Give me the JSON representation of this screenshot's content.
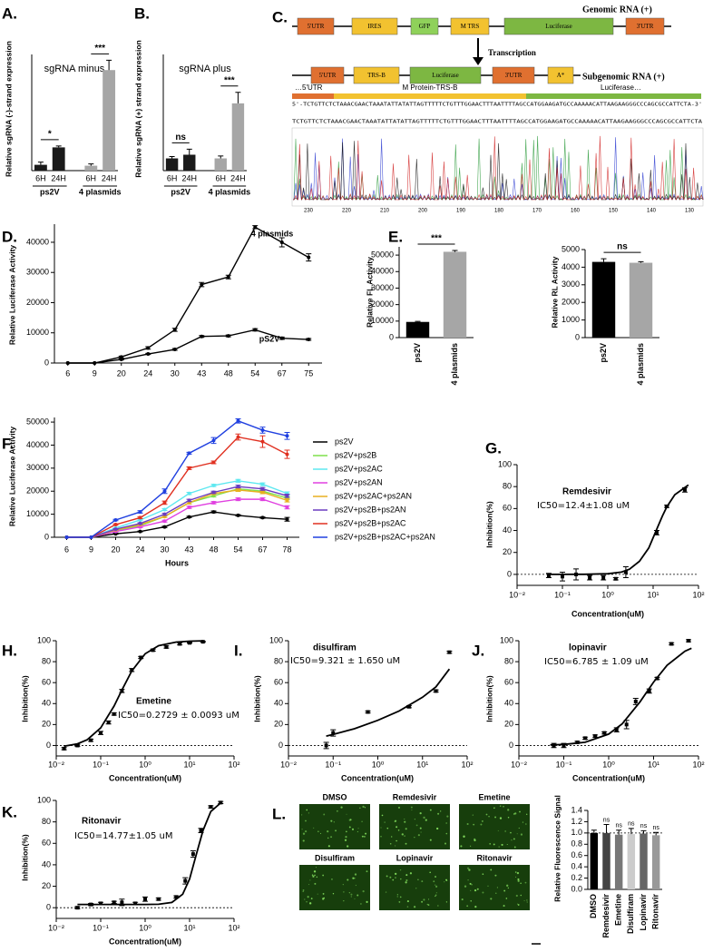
{
  "diagram": {
    "panel": "C.",
    "genomic": {
      "label": "Genomic RNA (+)",
      "boxes": [
        "5'UTR",
        "IRES",
        "GFP",
        "M TRS",
        "Luciferase",
        "3'UTR"
      ]
    },
    "transcription": "Transcription",
    "subgenomic": {
      "label": "Subgenomic RNA (+)",
      "boxes": [
        "5'UTR",
        "TRS-B",
        "Luciferase",
        "3'UTR",
        "A*"
      ]
    },
    "regions": [
      "…5'UTR",
      "M Protein-TRS-B",
      "Luciferase…"
    ],
    "sequence": "5'-TCTGTTCTCTAAACGAACTAAATATTATATTAGTTTTTCTGTTTGGAACTTTAATTTTAGCCATGGAAGATGCCAAAAACATTAAGAAGGGCCCAGCGCCATTCTA-3'",
    "read": "TCTGTTCTCTAAACGAACTAAATATTATATTAGTTTTTCTGTTTGGAACTTTAATTTTAGCCATGGAAGATGCCAAAAACATTAAGAAGGGCCCAGCGCCATTCTA",
    "trace_positions": [
      "230",
      "220",
      "210",
      "200",
      "190",
      "180",
      "170",
      "160",
      "150",
      "140",
      "130"
    ]
  },
  "images": {
    "panel": "L.",
    "labels": [
      "DMSO",
      "Remdesivir",
      "Emetine",
      "Disulfiram",
      "Lopinavir",
      "Ritonavir"
    ]
  },
  "chart_data": [
    {
      "type": "bar",
      "panel": "A.",
      "title": "sgRNA minus",
      "ylabel": "Relative sgRNA (-)-strand expression",
      "ylim": [
        0,
        26
      ],
      "groups": [
        {
          "name": "ps2V",
          "categories": [
            "6H",
            "24H"
          ],
          "values": [
            1.3,
            5.2
          ],
          "errors": [
            0.6,
            0.3
          ],
          "color": "#1a1a1a",
          "significance": "*"
        },
        {
          "name": "4 plasmids",
          "categories": [
            "6H",
            "24H"
          ],
          "values": [
            1.1,
            22.5
          ],
          "errors": [
            0.4,
            2.2
          ],
          "color": "#a6a6a6",
          "significance": "***"
        }
      ]
    },
    {
      "type": "bar",
      "panel": "B.",
      "title": "sgRNA plus",
      "ylabel": "Relative sgRNA (+) strand expression",
      "ylim": [
        0,
        9.5
      ],
      "groups": [
        {
          "name": "ps2V",
          "categories": [
            "6H",
            "24H"
          ],
          "values": [
            1.0,
            1.3
          ],
          "errors": [
            0.15,
            0.45
          ],
          "color": "#1a1a1a",
          "significance": "ns"
        },
        {
          "name": "4 plasmids",
          "categories": [
            "6H",
            "24H"
          ],
          "values": [
            1.0,
            5.5
          ],
          "errors": [
            0.2,
            0.9
          ],
          "color": "#a6a6a6",
          "significance": "***"
        }
      ]
    },
    {
      "type": "line",
      "panel": "D.",
      "ylabel": "Relative Luciferase Activity",
      "categories": [
        "6",
        "9",
        "20",
        "24",
        "30",
        "43",
        "48",
        "54",
        "67",
        "75"
      ],
      "ylim": [
        0,
        46000
      ],
      "yticks": [
        0,
        10000,
        20000,
        30000,
        40000
      ],
      "series": [
        {
          "name": "4 plasmids",
          "color": "#000000",
          "values": [
            0,
            0,
            2000,
            5000,
            11000,
            26000,
            28500,
            45000,
            40000,
            35000
          ],
          "errors": [
            0,
            0,
            300,
            400,
            500,
            700,
            600,
            500,
            1500,
            1200
          ]
        },
        {
          "name": "pS2V",
          "color": "#000000",
          "values": [
            0,
            0,
            1200,
            3000,
            4500,
            8800,
            9000,
            11000,
            8200,
            7800
          ],
          "errors": [
            0,
            0,
            200,
            200,
            300,
            300,
            300,
            400,
            400,
            300
          ]
        }
      ]
    },
    {
      "type": "bar",
      "panel": "E.",
      "ylabel": "Relative FL Activity",
      "categories": [
        "ps2V",
        "4 plasmids"
      ],
      "values": [
        9500,
        52000
      ],
      "errors": [
        300,
        800
      ],
      "colors": [
        "#000000",
        "#a6a6a6"
      ],
      "ylim": [
        0,
        55000
      ],
      "yticks": [
        0,
        10000,
        20000,
        30000,
        40000,
        50000
      ],
      "significance": "***"
    },
    {
      "type": "bar",
      "ylabel": "Relative RL Activity",
      "categories": [
        "ps2V",
        "4 plasmids"
      ],
      "values": [
        4300,
        4250
      ],
      "errors": [
        180,
        60
      ],
      "colors": [
        "#000000",
        "#a6a6a6"
      ],
      "ylim": [
        0,
        5000
      ],
      "yticks": [
        0,
        1000,
        2000,
        3000,
        4000,
        5000
      ],
      "significance": "ns"
    },
    {
      "type": "line",
      "panel": "F.",
      "ylabel": "Relative Luciferase Activity",
      "xlabel": "Hours",
      "legend": "right",
      "categories": [
        "6",
        "9",
        "20",
        "24",
        "30",
        "43",
        "48",
        "54",
        "67",
        "78"
      ],
      "ylim": [
        0,
        52000
      ],
      "yticks": [
        0,
        10000,
        20000,
        30000,
        40000,
        50000
      ],
      "series": [
        {
          "name": "ps2V",
          "color": "#000000",
          "values": [
            0,
            0,
            1500,
            2500,
            4500,
            8800,
            11000,
            9500,
            8500,
            7800
          ],
          "errors": [
            0,
            0,
            200,
            200,
            300,
            300,
            400,
            300,
            300,
            800
          ]
        },
        {
          "name": "ps2V+ps2B",
          "color": "#7ee04a",
          "values": [
            0,
            0,
            3000,
            5000,
            9000,
            15000,
            18000,
            21000,
            20000,
            17000
          ],
          "errors": [
            0,
            0,
            200,
            300,
            400,
            500,
            500,
            600,
            600,
            700
          ]
        },
        {
          "name": "ps2V+ps2AC",
          "color": "#5ee8f0",
          "values": [
            0,
            0,
            4000,
            7500,
            12000,
            19000,
            22500,
            24500,
            23000,
            19000
          ],
          "errors": [
            0,
            0,
            200,
            300,
            400,
            500,
            500,
            600,
            600,
            700
          ]
        },
        {
          "name": "ps2V+ps2AN",
          "color": "#e040e0",
          "values": [
            0,
            0,
            2500,
            4500,
            7000,
            13000,
            15000,
            16500,
            16500,
            13000
          ],
          "errors": [
            0,
            0,
            200,
            300,
            400,
            500,
            500,
            600,
            600,
            700
          ]
        },
        {
          "name": "ps2V+ps2AC+ps2AN",
          "color": "#e8b020",
          "values": [
            0,
            0,
            3200,
            5500,
            9000,
            15000,
            19000,
            20500,
            19500,
            16000
          ],
          "errors": [
            0,
            0,
            200,
            300,
            400,
            500,
            500,
            600,
            600,
            700
          ]
        },
        {
          "name": "ps2V+ps2B+ps2AN",
          "color": "#6a3cc0",
          "values": [
            0,
            0,
            3500,
            6000,
            10000,
            16000,
            19500,
            22000,
            21000,
            18000
          ],
          "errors": [
            0,
            0,
            200,
            300,
            400,
            500,
            500,
            600,
            600,
            700
          ]
        },
        {
          "name": "ps2V+ps2B+ps2AC",
          "color": "#e03020",
          "values": [
            0,
            0,
            5500,
            8500,
            15000,
            30000,
            32500,
            43500,
            41500,
            36000
          ],
          "errors": [
            0,
            0,
            300,
            400,
            700,
            600,
            600,
            1300,
            2500,
            1800
          ]
        },
        {
          "name": "ps2V+ps2B+ps2AC+ps2AN",
          "color": "#2040e0",
          "values": [
            0,
            0,
            7500,
            11000,
            20000,
            36500,
            42000,
            50500,
            46500,
            44000
          ],
          "errors": [
            0,
            0,
            300,
            500,
            1000,
            400,
            1300,
            900,
            1300,
            1500
          ]
        }
      ]
    },
    {
      "type": "scatter",
      "panel": "G.",
      "title": "Remdesivir",
      "annotation": "IC50=12.4±1.08 uM",
      "xlabel": "Concentration(uM)",
      "ylabel": "Inhibition(%)",
      "xscale": "log",
      "xlim": [
        0.01,
        100
      ],
      "xticks": [
        {
          "value": 0.01,
          "label": "10⁻²"
        },
        {
          "value": 0.1,
          "label": "10⁻¹"
        },
        {
          "value": 1,
          "label": "10⁰"
        },
        {
          "value": 10,
          "label": "10¹"
        },
        {
          "value": 100,
          "label": "10²"
        }
      ],
      "ylim": [
        -10,
        100
      ],
      "yticks": [
        0,
        20,
        40,
        60,
        80,
        100
      ],
      "reference_line": 0,
      "color": "#000000",
      "x": [
        0.05,
        0.1,
        0.2,
        0.4,
        0.8,
        1.5,
        2.5,
        12,
        20,
        50
      ],
      "values": [
        -1,
        -2,
        0,
        -3,
        -3,
        -4,
        2,
        38,
        62,
        77
      ],
      "errors": [
        2,
        4,
        5,
        2,
        2,
        1,
        5,
        2,
        1,
        2
      ],
      "fit": {
        "x": [
          0.05,
          0.1,
          0.3,
          1,
          2,
          3,
          5,
          8,
          10,
          13,
          16,
          20,
          30,
          60
        ],
        "values": [
          0,
          0,
          0.1,
          0.6,
          2.1,
          4.7,
          11.9,
          24.1,
          33.4,
          44.5,
          53.2,
          61.5,
          72.6,
          81.5
        ]
      }
    },
    {
      "type": "scatter",
      "panel": "H.",
      "title": "Emetine",
      "annotation": "IC50=0.2729 ± 0.0093 uM",
      "xlabel": "Concentration(uM)",
      "ylabel": "Inhibition(%)",
      "xscale": "log",
      "xlim": [
        0.01,
        100
      ],
      "xticks": [
        {
          "value": 0.01,
          "label": "10⁻²"
        },
        {
          "value": 0.1,
          "label": "10⁻¹"
        },
        {
          "value": 1,
          "label": "10⁰"
        },
        {
          "value": 10,
          "label": "10¹"
        },
        {
          "value": 100,
          "label": "10²"
        }
      ],
      "ylim": [
        -10,
        100
      ],
      "yticks": [
        0,
        20,
        40,
        60,
        80,
        100
      ],
      "reference_line": 0,
      "color": "#000000",
      "x": [
        0.015,
        0.03,
        0.06,
        0.1,
        0.15,
        0.2,
        0.3,
        0.5,
        0.8,
        1.5,
        3,
        6,
        10,
        20
      ],
      "values": [
        -3,
        0,
        5,
        12,
        22,
        30,
        52,
        72,
        84,
        91,
        94,
        97,
        98,
        99
      ],
      "errors": [
        1,
        1,
        1,
        1.5,
        1.5,
        1,
        1.5,
        1.5,
        1,
        1,
        1,
        1,
        0.5,
        0.5
      ],
      "fit": {
        "x": [
          0.015,
          0.03,
          0.05,
          0.1,
          0.2,
          0.3,
          0.5,
          1,
          2,
          5,
          10,
          20
        ],
        "values": [
          -0.7,
          1.6,
          5.5,
          16.8,
          37.7,
          53,
          71,
          87.5,
          95.2,
          98.7,
          99.6,
          99.9
        ]
      }
    },
    {
      "type": "scatter",
      "panel": "I.",
      "title": "disulfiram",
      "annotation": "IC50=9.321 ± 1.650 uM",
      "xlabel": "Concentration(uM)",
      "ylabel": "Inhibition(%)",
      "xscale": "log",
      "xlim": [
        0.01,
        100
      ],
      "xticks": [
        {
          "value": 0.01,
          "label": "10⁻²"
        },
        {
          "value": 0.1,
          "label": "10⁻¹"
        },
        {
          "value": 1,
          "label": "10⁰"
        },
        {
          "value": 10,
          "label": "10¹"
        },
        {
          "value": 100,
          "label": "10²"
        }
      ],
      "ylim": [
        -10,
        100
      ],
      "yticks": [
        0,
        20,
        40,
        60,
        80,
        100
      ],
      "reference_line": 0,
      "color": "#000000",
      "x": [
        0.07,
        0.1,
        0.6,
        5,
        20,
        40
      ],
      "values": [
        0,
        12,
        32,
        37,
        52,
        89
      ],
      "errors": [
        3,
        3,
        1,
        1,
        1,
        1
      ],
      "fit": {
        "x": [
          0.07,
          0.1,
          0.3,
          1,
          3,
          10,
          20,
          40
        ],
        "values": [
          9,
          10.5,
          16,
          24,
          33,
          46,
          56,
          73
        ]
      }
    },
    {
      "type": "scatter",
      "panel": "J.",
      "title": "lopinavir",
      "annotation": "IC50=6.785 ± 1.09 uM",
      "xlabel": "Concentration(uM)",
      "ylabel": "Inhibition(%)",
      "xscale": "log",
      "xlim": [
        0.01,
        100
      ],
      "xticks": [
        {
          "value": 0.01,
          "label": "10⁻²"
        },
        {
          "value": 0.1,
          "label": "10⁻¹"
        },
        {
          "value": 1,
          "label": "10⁰"
        },
        {
          "value": 10,
          "label": "10¹"
        },
        {
          "value": 100,
          "label": "10²"
        }
      ],
      "ylim": [
        -10,
        100
      ],
      "yticks": [
        0,
        20,
        40,
        60,
        80,
        100
      ],
      "reference_line": 0,
      "color": "#000000",
      "x": [
        0.06,
        0.1,
        0.2,
        0.3,
        0.5,
        0.8,
        1.5,
        2.5,
        4,
        8,
        12,
        25,
        60
      ],
      "values": [
        0,
        0,
        3,
        7,
        9,
        12,
        15,
        20,
        42,
        52,
        64,
        97,
        100
      ],
      "errors": [
        2,
        2,
        1,
        1,
        1,
        1,
        2,
        4,
        3,
        2,
        1,
        1,
        1
      ],
      "fit": {
        "x": [
          0.05,
          0.1,
          0.3,
          1,
          2,
          5,
          10,
          20,
          50,
          70
        ],
        "values": [
          0.5,
          1,
          3.1,
          10.9,
          20.7,
          41.7,
          60.5,
          76.6,
          90,
          92.8
        ]
      }
    },
    {
      "type": "scatter",
      "panel": "K.",
      "title": "Ritonavir",
      "annotation": "IC50=14.77±1.05 uM",
      "xlabel": "Concentration(uM)",
      "ylabel": "Inhibition(%)",
      "xscale": "log",
      "xlim": [
        0.01,
        100
      ],
      "xticks": [
        {
          "value": 0.01,
          "label": "10⁻²"
        },
        {
          "value": 0.1,
          "label": "10⁻¹"
        },
        {
          "value": 1,
          "label": "10⁰"
        },
        {
          "value": 10,
          "label": "10¹"
        },
        {
          "value": 100,
          "label": "10²"
        }
      ],
      "ylim": [
        -10,
        100
      ],
      "yticks": [
        0,
        20,
        40,
        60,
        80,
        100
      ],
      "reference_line": 0,
      "color": "#000000",
      "x": [
        0.03,
        0.06,
        0.1,
        0.2,
        0.3,
        0.6,
        1,
        2,
        5,
        8,
        12,
        18,
        30,
        50
      ],
      "values": [
        0,
        3,
        4,
        5,
        5,
        4,
        8,
        8,
        10,
        25,
        50,
        72,
        94,
        98
      ],
      "errors": [
        1,
        1,
        1,
        1,
        3,
        1,
        2,
        1,
        1,
        3,
        3,
        2,
        1,
        1
      ],
      "fit": {
        "x": [
          0.03,
          0.1,
          0.5,
          1,
          2,
          4,
          7,
          10,
          14,
          20,
          30,
          50
        ],
        "values": [
          3,
          3,
          3,
          3,
          3.2,
          4.9,
          12.6,
          26.7,
          49,
          72,
          89.7,
          97.6
        ]
      }
    },
    {
      "type": "bar",
      "ylabel": "Relative Fluorescence Signal",
      "categories": [
        "DMSO",
        "Remdesivir",
        "Emetine",
        "Disulfiram",
        "Lopinavir",
        "Ritonavir"
      ],
      "values": [
        1.0,
        1.0,
        0.97,
        0.98,
        0.99,
        0.96
      ],
      "errors": [
        0.05,
        0.15,
        0.08,
        0.1,
        0.05,
        0.05
      ],
      "colors": [
        "#000000",
        "#444444",
        "#777777",
        "#cccccc",
        "#666666",
        "#999999"
      ],
      "ylim": [
        0,
        1.4
      ],
      "yticks": [
        {
          "value": 0,
          "label": "0.0"
        },
        0.2,
        0.4,
        0.6,
        0.8,
        {
          "value": 1,
          "label": "1.0"
        },
        1.2,
        1.4
      ],
      "reference_line": 1,
      "significance": [
        null,
        "ns",
        "ns",
        "ns",
        "ns",
        "ns"
      ]
    }
  ]
}
